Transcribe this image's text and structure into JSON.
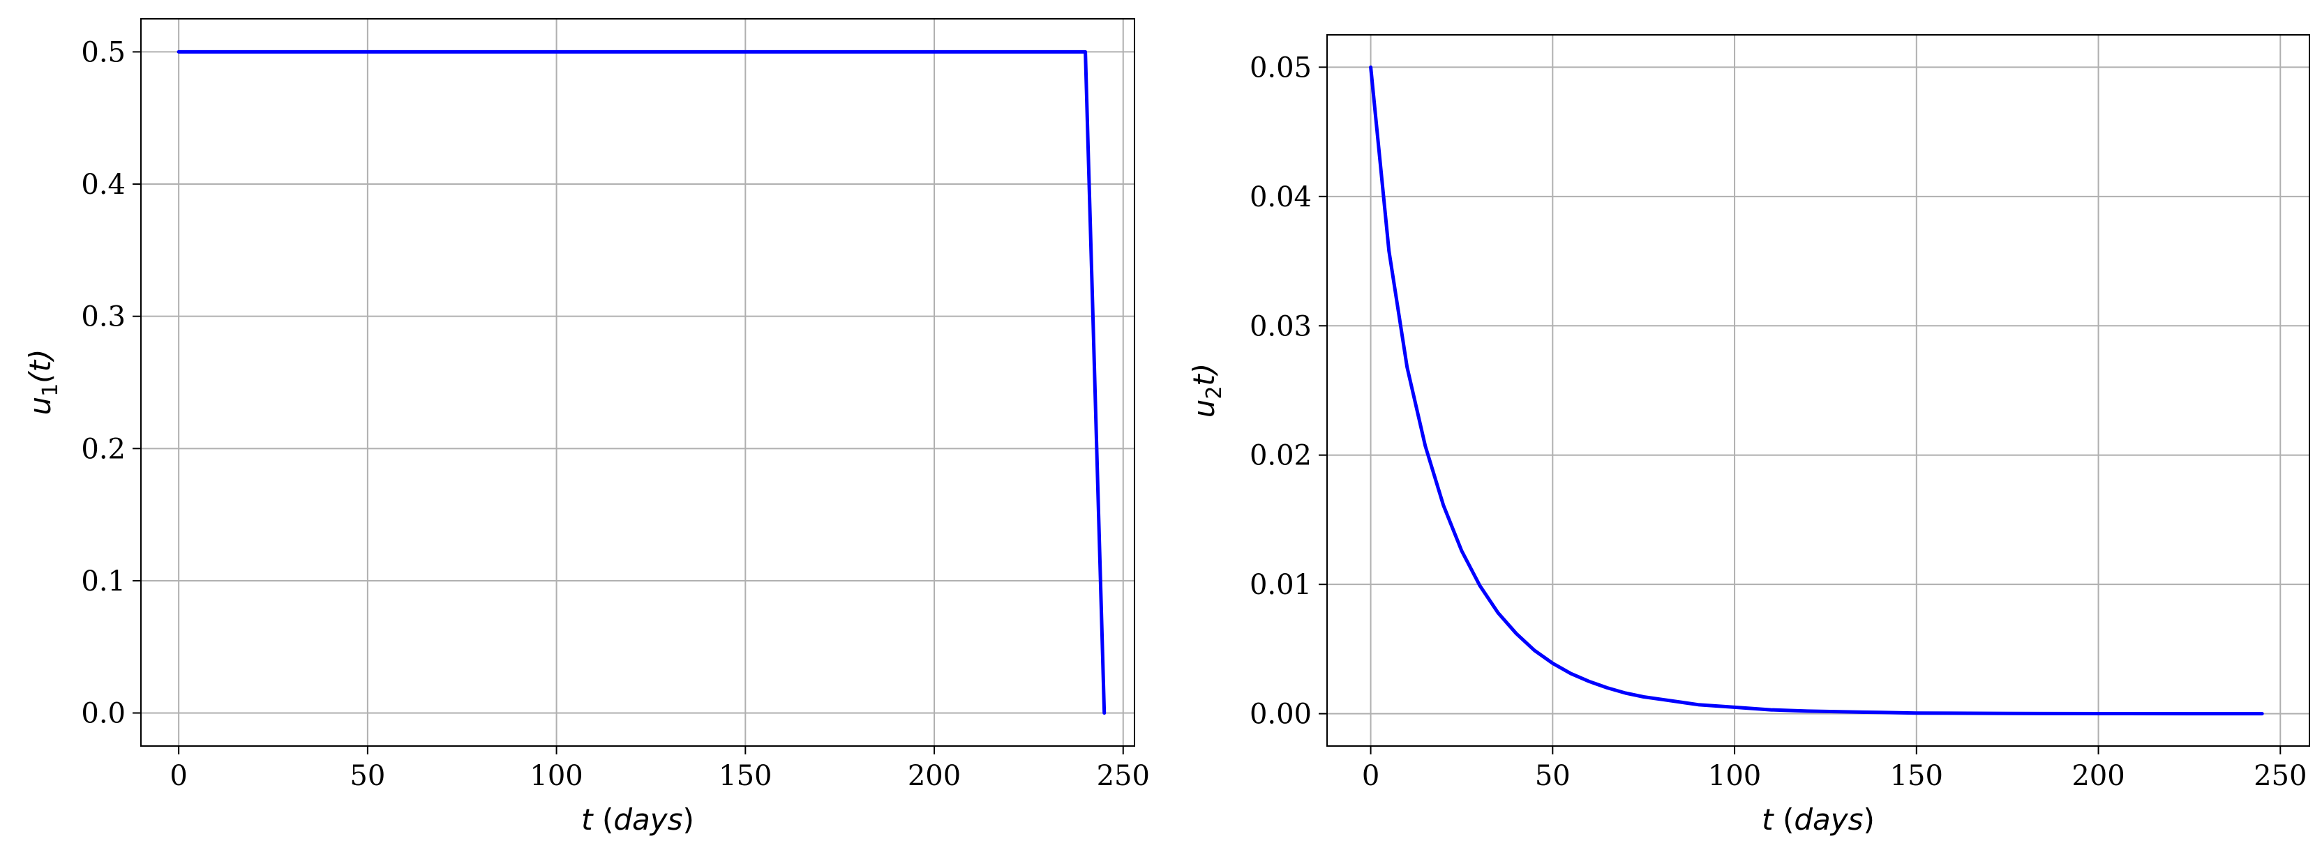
{
  "chart_data": [
    {
      "type": "line",
      "title": "",
      "xlabel": {
        "var": "t",
        "open": "(",
        "unit": "days",
        "close": ")"
      },
      "ylabel": {
        "var": "u",
        "sub": "1",
        "rest": "(t)"
      },
      "xlim": [
        -10,
        253
      ],
      "ylim": [
        -0.025,
        0.525
      ],
      "xticks": [
        0,
        50,
        100,
        150,
        200,
        250
      ],
      "xtick_labels": [
        "0",
        "50",
        "100",
        "150",
        "200",
        "250"
      ],
      "yticks": [
        0.0,
        0.1,
        0.2,
        0.3,
        0.4,
        0.5
      ],
      "ytick_labels": [
        "0.0",
        "0.1",
        "0.2",
        "0.3",
        "0.4",
        "0.5"
      ],
      "grid": true,
      "legend": "none",
      "series": [
        {
          "color": "#0000ff",
          "x": [
            0,
            50,
            100,
            150,
            200,
            240,
            245
          ],
          "y": [
            0.5,
            0.5,
            0.5,
            0.5,
            0.5,
            0.5,
            0.0
          ]
        }
      ]
    },
    {
      "type": "line",
      "title": "",
      "xlabel": {
        "var": "t",
        "open": "(",
        "unit": "days",
        "close": ")"
      },
      "ylabel": {
        "var": "u",
        "sub": "2",
        "rest": "t)"
      },
      "xlim": [
        -12,
        258
      ],
      "ylim": [
        -0.0025,
        0.0525
      ],
      "xticks": [
        0,
        50,
        100,
        150,
        200,
        250
      ],
      "xtick_labels": [
        "0",
        "50",
        "100",
        "150",
        "200",
        "250"
      ],
      "yticks": [
        0.0,
        0.01,
        0.02,
        0.03,
        0.04,
        0.05
      ],
      "ytick_labels": [
        "0.00",
        "0.01",
        "0.02",
        "0.03",
        "0.04",
        "0.05"
      ],
      "grid": true,
      "legend": "none",
      "series": [
        {
          "color": "#0000ff",
          "x": [
            0,
            5,
            10,
            15,
            20,
            25,
            30,
            35,
            40,
            45,
            50,
            55,
            60,
            65,
            70,
            75,
            80,
            90,
            100,
            110,
            120,
            130,
            140,
            150,
            175,
            200,
            225,
            245
          ],
          "y": [
            0.05,
            0.0358,
            0.0268,
            0.0207,
            0.0161,
            0.0126,
            0.0099,
            0.0078,
            0.0062,
            0.0049,
            0.0039,
            0.0031,
            0.0025,
            0.002,
            0.0016,
            0.0013,
            0.0011,
            0.0007,
            0.0005,
            0.0003,
            0.0002,
            0.00015,
            0.0001,
            5e-05,
            2e-05,
            1e-05,
            0.0,
            0.0
          ]
        }
      ]
    }
  ]
}
